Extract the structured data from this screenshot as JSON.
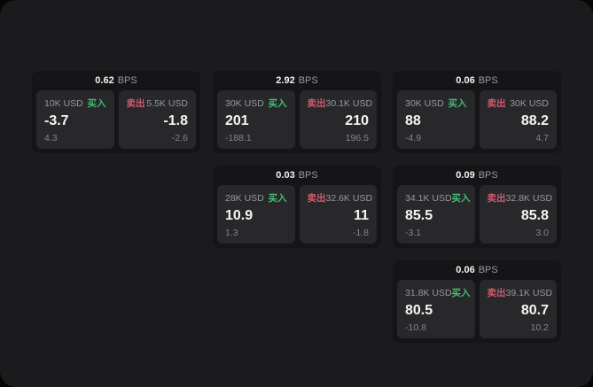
{
  "labels": {
    "bps_unit": "BPS",
    "buy": "买入",
    "sell": "卖出"
  },
  "colors": {
    "outer_bg": "#060607",
    "panel_bg": "#1b1b1d",
    "card_bg": "#151517",
    "tile_bg": "#28282a",
    "text_primary": "#f2f2f3",
    "text_muted": "#98989d",
    "buy_accent": "#41bd74",
    "sell_accent": "#d15a6e"
  },
  "cards": [
    {
      "bps": "0.62",
      "buy": {
        "amount": "10K USD",
        "price": "-3.7",
        "delta": "4.3"
      },
      "sell": {
        "amount": "5.5K USD",
        "price": "-1.8",
        "delta": "-2.6"
      }
    },
    {
      "bps": "2.92",
      "buy": {
        "amount": "30K USD",
        "price": "201",
        "delta": "-188.1"
      },
      "sell": {
        "amount": "30.1K USD",
        "price": "210",
        "delta": "196.5"
      }
    },
    {
      "bps": "0.06",
      "buy": {
        "amount": "30K USD",
        "price": "88",
        "delta": "-4.9"
      },
      "sell": {
        "amount": "30K USD",
        "price": "88.2",
        "delta": "4.7"
      }
    },
    {
      "bps": "0.03",
      "buy": {
        "amount": "28K USD",
        "price": "10.9",
        "delta": "1.3"
      },
      "sell": {
        "amount": "32.6K USD",
        "price": "11",
        "delta": "-1.8"
      }
    },
    {
      "bps": "0.09",
      "buy": {
        "amount": "34.1K USD",
        "price": "85.5",
        "delta": "-3.1"
      },
      "sell": {
        "amount": "32.8K USD",
        "price": "85.8",
        "delta": "3.0"
      }
    },
    {
      "bps": "0.06",
      "buy": {
        "amount": "31.8K USD",
        "price": "80.5",
        "delta": "-10.8"
      },
      "sell": {
        "amount": "39.1K USD",
        "price": "80.7",
        "delta": "10.2"
      }
    }
  ]
}
